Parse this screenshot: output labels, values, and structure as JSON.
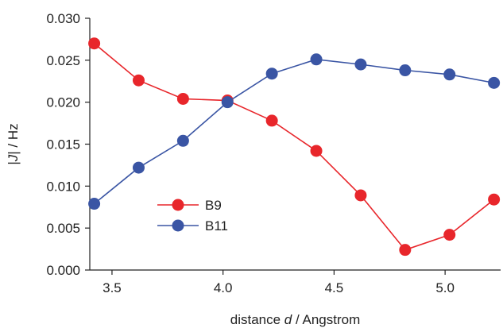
{
  "chart_data": {
    "type": "line",
    "title": "",
    "xlabel_parts": [
      "distance ",
      "d",
      " / Angstrom"
    ],
    "ylabel_parts": [
      "|",
      "J",
      "| / Hz"
    ],
    "xlim": [
      3.4,
      5.25
    ],
    "ylim": [
      0.0,
      0.03
    ],
    "xticks": [
      3.5,
      4.0,
      4.5,
      5.0
    ],
    "xtick_labels": [
      "3.5",
      "4.0",
      "4.5",
      "5.0"
    ],
    "yticks": [
      0.0,
      0.005,
      0.01,
      0.015,
      0.02,
      0.025,
      0.03
    ],
    "ytick_labels": [
      "0.000",
      "0.005",
      "0.010",
      "0.015",
      "0.020",
      "0.025",
      "0.030"
    ],
    "grid": false,
    "legend_position": "center-left",
    "x": [
      3.42,
      3.62,
      3.82,
      4.02,
      4.22,
      4.42,
      4.62,
      4.82,
      5.02,
      5.22
    ],
    "series": [
      {
        "name": "B9",
        "color": "#e8262b",
        "values": [
          0.027,
          0.0226,
          0.0204,
          0.0202,
          0.0178,
          0.0142,
          0.0089,
          0.0024,
          0.0042,
          0.0084
        ]
      },
      {
        "name": "B11",
        "color": "#3a55a4",
        "values": [
          0.0079,
          0.0122,
          0.0154,
          0.02,
          0.0234,
          0.0251,
          0.0245,
          0.0238,
          0.0233,
          0.0223
        ]
      }
    ]
  }
}
